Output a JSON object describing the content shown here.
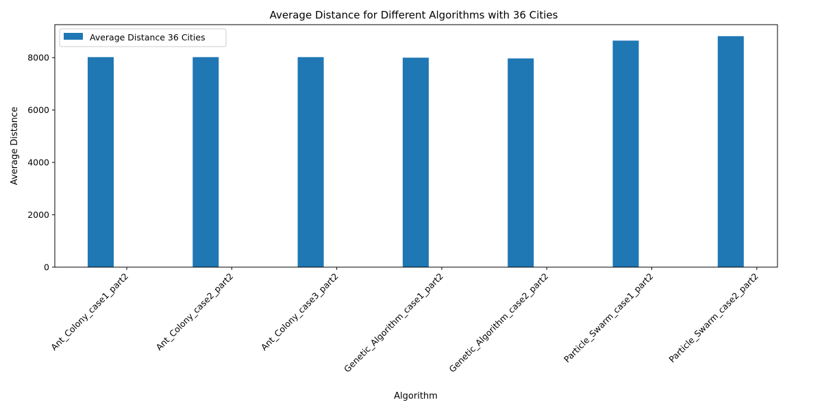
{
  "chart_data": {
    "type": "bar",
    "title": "Average Distance for Different Algorithms with 36 Cities",
    "xlabel": "Algorithm",
    "ylabel": "Average Distance",
    "categories": [
      "Ant_Colony_case1_part2",
      "Ant_Colony_case2_part2",
      "Ant_Colony_case3_part2",
      "Genetic_Algorithm_case1_part2",
      "Genetic_Algorithm_case2_part2",
      "Particle_Swarm_case1_part2",
      "Particle_Swarm_case2_part2"
    ],
    "series": [
      {
        "name": "Average Distance 36 Cities",
        "values": [
          8020,
          8020,
          8020,
          8000,
          7970,
          8650,
          8820
        ],
        "color": "#1f77b4"
      }
    ],
    "ylim": [
      0,
      9260
    ],
    "yticks": [
      0,
      2000,
      4000,
      6000,
      8000
    ],
    "grid": false,
    "legend_position": "upper-left"
  }
}
